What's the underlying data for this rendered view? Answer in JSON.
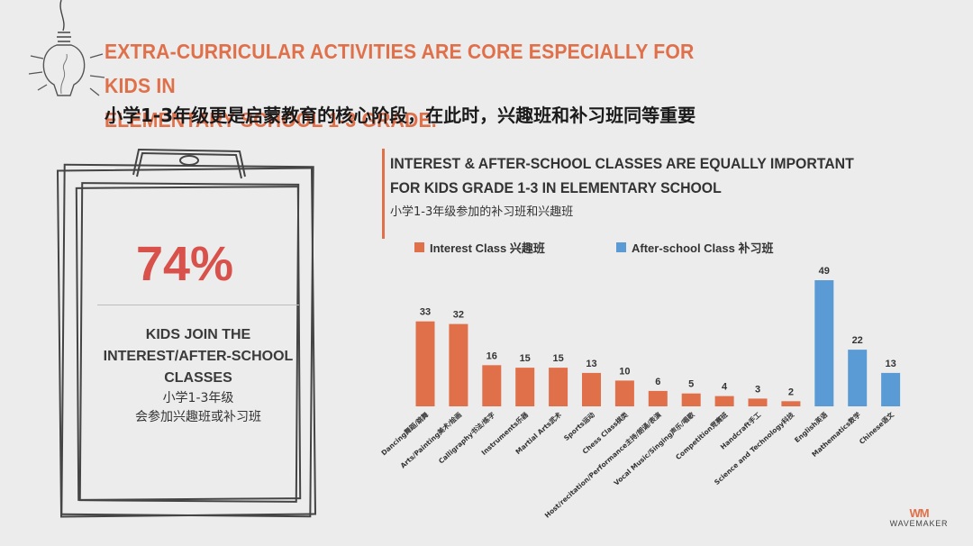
{
  "header": {
    "title_line1": "EXTRA-CURRICULAR ACTIVITIES ARE CORE ESPECIALLY FOR KIDS IN",
    "title_line2": "ELEMENTARY SCHOOL 1-3 GRADE.",
    "subtitle_cn": "小学1-3年级更是启蒙教育的核心阶段，在此时，兴趣班和补习班同等重要"
  },
  "board": {
    "percent": "74%",
    "line1": "KIDS JOIN THE",
    "line2": "INTEREST/AFTER-SCHOOL",
    "line3": "CLASSES",
    "cn_line1": "小学1-3年级",
    "cn_line2": "会参加兴趣班或补习班"
  },
  "chart_header": {
    "title_line1": "INTEREST & AFTER-SCHOOL CLASSES ARE EQUALLY IMPORTANT",
    "title_line2": "FOR KIDS GRADE 1-3 IN ELEMENTARY SCHOOL",
    "subtitle_cn": "小学1-3年级参加的补习班和兴趣班"
  },
  "colors": {
    "accent": "#e0704a",
    "interest": "#e0704a",
    "after_school": "#5b9bd5",
    "percent": "#d8514a"
  },
  "logo": {
    "mark": "WM",
    "text": "WAVEMAKER"
  },
  "chart_data": {
    "type": "bar",
    "title": "INTEREST & AFTER-SCHOOL CLASSES ARE EQUALLY IMPORTANT FOR KIDS GRADE 1-3 IN ELEMENTARY SCHOOL",
    "legend_position": "top",
    "grid": false,
    "ylim": [
      0,
      50
    ],
    "series": [
      {
        "name": "Interest Class 兴趣班",
        "color": "#e0704a"
      },
      {
        "name": "After-school Class 补习班",
        "color": "#5b9bd5"
      }
    ],
    "categories": [
      "Dancing舞蹈/跳舞",
      "Arts/Painting美术/绘画",
      "Calligraphy书法/练字",
      "Instruments乐器",
      "Martial Arts武术",
      "Sports运动",
      "Chess Class棋类",
      "Host/recitation/Performance主持/朗诵/表演",
      "Vocal Music/Singing声乐/唱歌",
      "Competition竞赛班",
      "Handcraft手工",
      "Science and Technology科技",
      "English英语",
      "Mathematics数学",
      "Chinese语文"
    ],
    "values": [
      33,
      32,
      16,
      15,
      15,
      13,
      10,
      6,
      5,
      4,
      3,
      2,
      49,
      22,
      13
    ],
    "series_index": [
      0,
      0,
      0,
      0,
      0,
      0,
      0,
      0,
      0,
      0,
      0,
      0,
      1,
      1,
      1
    ]
  }
}
